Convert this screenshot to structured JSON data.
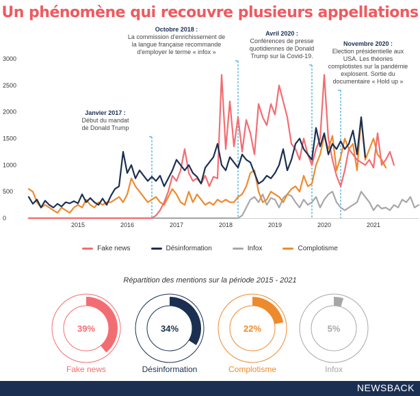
{
  "title": "Un phénomène qui recouvre plusieurs appellations",
  "brand": "NEWSBACK",
  "colors": {
    "fake_news": "#f26d72",
    "desinformation": "#1b2f52",
    "infox": "#a7a7a7",
    "complotisme": "#ee8a2e",
    "annotation_line": "#38a9d6",
    "footer": "#1b2f52",
    "title": "#ef5a5f"
  },
  "chart_data": [
    {
      "type": "line",
      "title": "",
      "xlabel": "",
      "ylabel": "",
      "x_start": "2014-07",
      "x_step": "1 month",
      "ylim": [
        0,
        3000
      ],
      "yticks": [
        0,
        500,
        1000,
        1500,
        2000,
        2500,
        3000
      ],
      "xtick_labels": [
        "2015",
        "2016",
        "2017",
        "2018",
        "2019",
        "2020",
        "2021"
      ],
      "grid": false,
      "legend_position": "bottom",
      "series": [
        {
          "name": "Fake news",
          "color": "#f26d72",
          "values": [
            0,
            0,
            0,
            0,
            0,
            0,
            0,
            0,
            0,
            0,
            0,
            0,
            0,
            0,
            0,
            0,
            0,
            0,
            0,
            0,
            0,
            0,
            0,
            0,
            0,
            0,
            0,
            0,
            0,
            0,
            0,
            50,
            150,
            300,
            500,
            800,
            700,
            900,
            1300,
            850,
            700,
            750,
            650,
            800,
            600,
            780,
            750,
            2700,
            1300,
            2200,
            1350,
            1900,
            1250,
            1850,
            1600,
            1200,
            2150,
            1900,
            1750,
            2150,
            1950,
            2500,
            2200,
            1900,
            1400,
            1300,
            1100,
            1500,
            1200,
            1000,
            1300,
            1500,
            2700,
            1500,
            1100,
            800,
            600,
            900,
            1300,
            1200,
            1100,
            1050,
            1000,
            1100,
            950,
            1600,
            1000,
            1100,
            1250,
            1000
          ]
        },
        {
          "name": "Désinformation",
          "color": "#1b2f52",
          "values": [
            400,
            270,
            350,
            200,
            330,
            250,
            200,
            270,
            220,
            300,
            280,
            320,
            280,
            450,
            300,
            380,
            300,
            250,
            370,
            250,
            420,
            550,
            600,
            1250,
            850,
            1000,
            750,
            900,
            800,
            700,
            780,
            700,
            800,
            600,
            750,
            900,
            1100,
            1000,
            900,
            1000,
            850,
            780,
            650,
            950,
            1050,
            1150,
            1400,
            1000,
            900,
            1150,
            1050,
            950,
            1200,
            1100,
            1050,
            850,
            650,
            700,
            800,
            750,
            850,
            1000,
            1300,
            900,
            1100,
            1400,
            1500,
            1300,
            1200,
            1100,
            1700,
            1350,
            1600,
            1200,
            1400,
            1300,
            1450,
            1300,
            1400,
            1650,
            1200,
            1900,
            1150
          ]
        },
        {
          "name": "Infox",
          "color": "#a7a7a7",
          "values": [
            0,
            0,
            0,
            0,
            0,
            0,
            0,
            0,
            0,
            0,
            0,
            0,
            0,
            0,
            0,
            0,
            0,
            0,
            0,
            0,
            0,
            0,
            0,
            0,
            0,
            0,
            0,
            0,
            0,
            0,
            0,
            0,
            0,
            0,
            0,
            0,
            0,
            0,
            0,
            0,
            0,
            0,
            0,
            0,
            0,
            0,
            0,
            0,
            0,
            0,
            0,
            0,
            50,
            200,
            350,
            400,
            300,
            450,
            250,
            380,
            350,
            200,
            380,
            450,
            420,
            300,
            200,
            350,
            250,
            300,
            400,
            200,
            350,
            450,
            500,
            300,
            200,
            150,
            200,
            250,
            300,
            500,
            400,
            300,
            150,
            250,
            180,
            200,
            150,
            250,
            200,
            350,
            300,
            400,
            200,
            250
          ]
        },
        {
          "name": "Complotisme",
          "color": "#ee8a2e",
          "values": [
            550,
            500,
            300,
            200,
            250,
            200,
            150,
            100,
            200,
            150,
            100,
            200,
            250,
            200,
            350,
            250,
            200,
            300,
            250,
            300,
            300,
            350,
            400,
            300,
            450,
            750,
            600,
            500,
            400,
            300,
            350,
            400,
            300,
            250,
            400,
            550,
            450,
            300,
            250,
            500,
            300,
            450,
            350,
            250,
            300,
            250,
            350,
            300,
            350,
            300,
            300,
            400,
            450,
            600,
            850,
            900,
            500,
            300,
            350,
            500,
            450,
            400,
            300,
            450,
            550,
            600,
            500,
            800,
            600,
            650,
            1000,
            1200,
            1550,
            1300,
            1550,
            900,
            1150,
            1500,
            1300,
            1400,
            900,
            1900,
            1100,
            1300,
            1500,
            1200,
            1100,
            950
          ]
        }
      ]
    },
    {
      "type": "pie",
      "title": "Répartition des mentions sur la période 2015 - 2021",
      "categories": [
        "Fake news",
        "Désinformation",
        "Complotisme",
        "Infox"
      ],
      "values": [
        39,
        34,
        22,
        5
      ],
      "labels": [
        "39%",
        "34%",
        "22%",
        "5%"
      ]
    }
  ],
  "annotations": [
    {
      "title": "Janvier 2017 :",
      "lines": [
        "Début du mandat",
        "de Donald Trump"
      ],
      "date": "2017-01"
    },
    {
      "title": "Octobre 2018 :",
      "lines": [
        "La commission d'enrichissement de",
        "la langue française recommande",
        "d'employer le terme « infox »"
      ],
      "date": "2018-10"
    },
    {
      "title": "Avril 2020 :",
      "lines": [
        "Conférences de presse",
        "quotidiennes de Donald",
        "Trump sur la Covid-19."
      ],
      "date": "2020-04"
    },
    {
      "title": "Novembre 2020 :",
      "lines": [
        "Election présidentielle aux",
        "USA. Les théories",
        "complotistes sur la pandémie",
        "explosent. Sortie du",
        "documentaire « Hold up »"
      ],
      "date": "2020-11"
    }
  ]
}
